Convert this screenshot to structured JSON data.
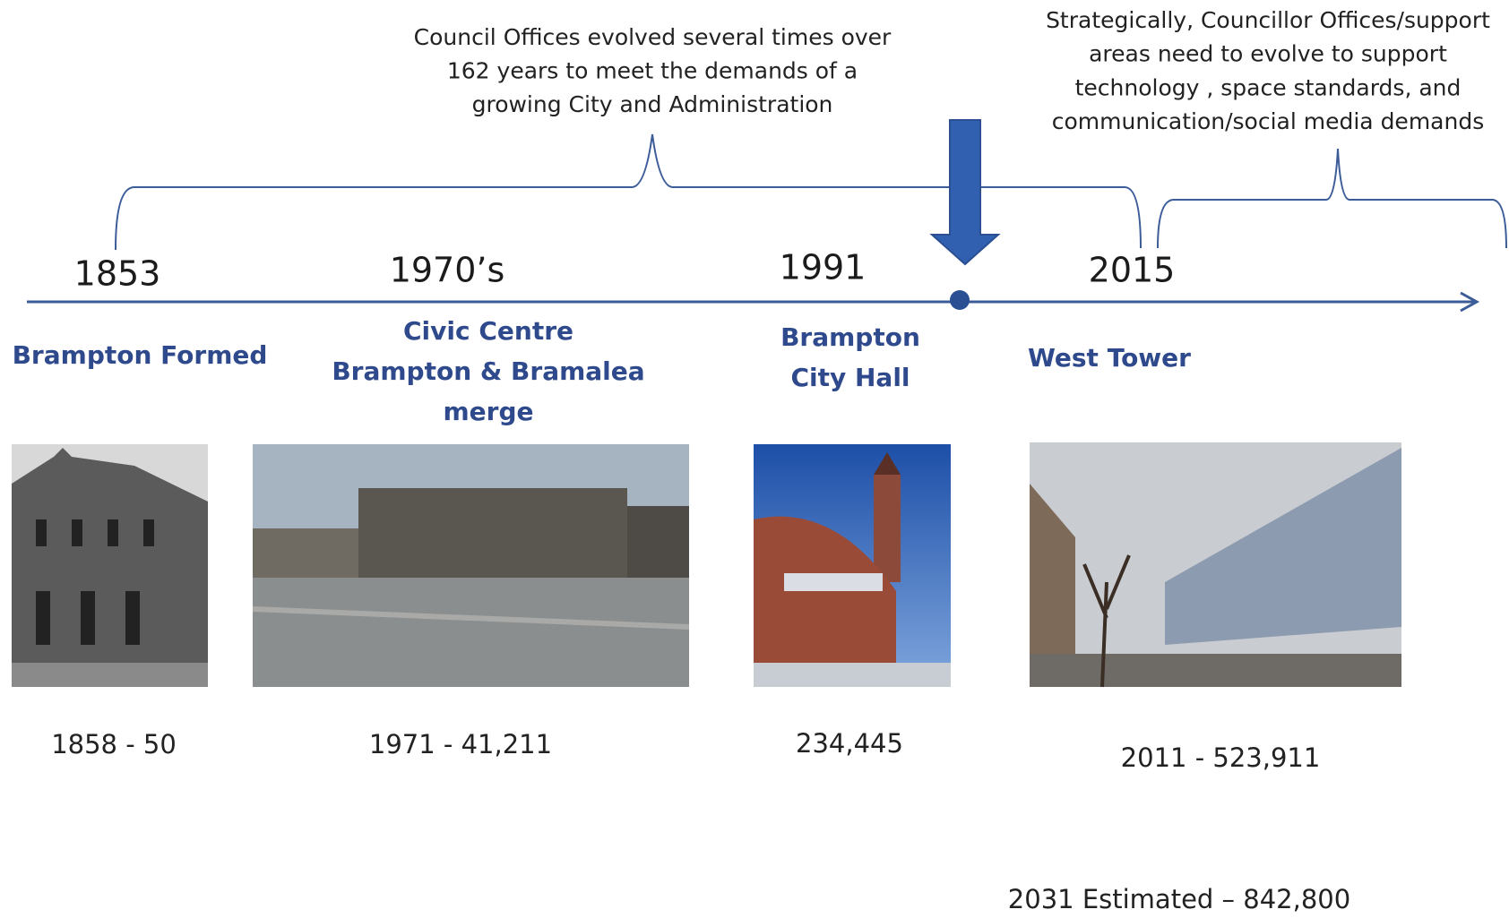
{
  "callouts": [
    {
      "lines": [
        "Council Offices evolved several times over",
        "162 years to meet the demands of a",
        "growing City and Administration"
      ]
    },
    {
      "lines": [
        "Strategically, Councillor Offices/support",
        "areas need to evolve to support",
        "technology , space standards, and",
        "communication/social media demands"
      ]
    }
  ],
  "events": [
    {
      "year": "1853",
      "lines": [
        "Brampton Formed"
      ],
      "population": "1858 - 50"
    },
    {
      "year": "1970’s",
      "lines": [
        "Civic Centre",
        "Brampton & Bramalea",
        "merge"
      ],
      "population": "1971 - 41,211"
    },
    {
      "year": "1991",
      "lines": [
        "Brampton",
        "City Hall"
      ],
      "population": "234,445"
    },
    {
      "year": "2015",
      "lines": [
        "West Tower"
      ],
      "population": "2011 -  523,911"
    }
  ],
  "estimate": "2031 Estimated – 842,800"
}
